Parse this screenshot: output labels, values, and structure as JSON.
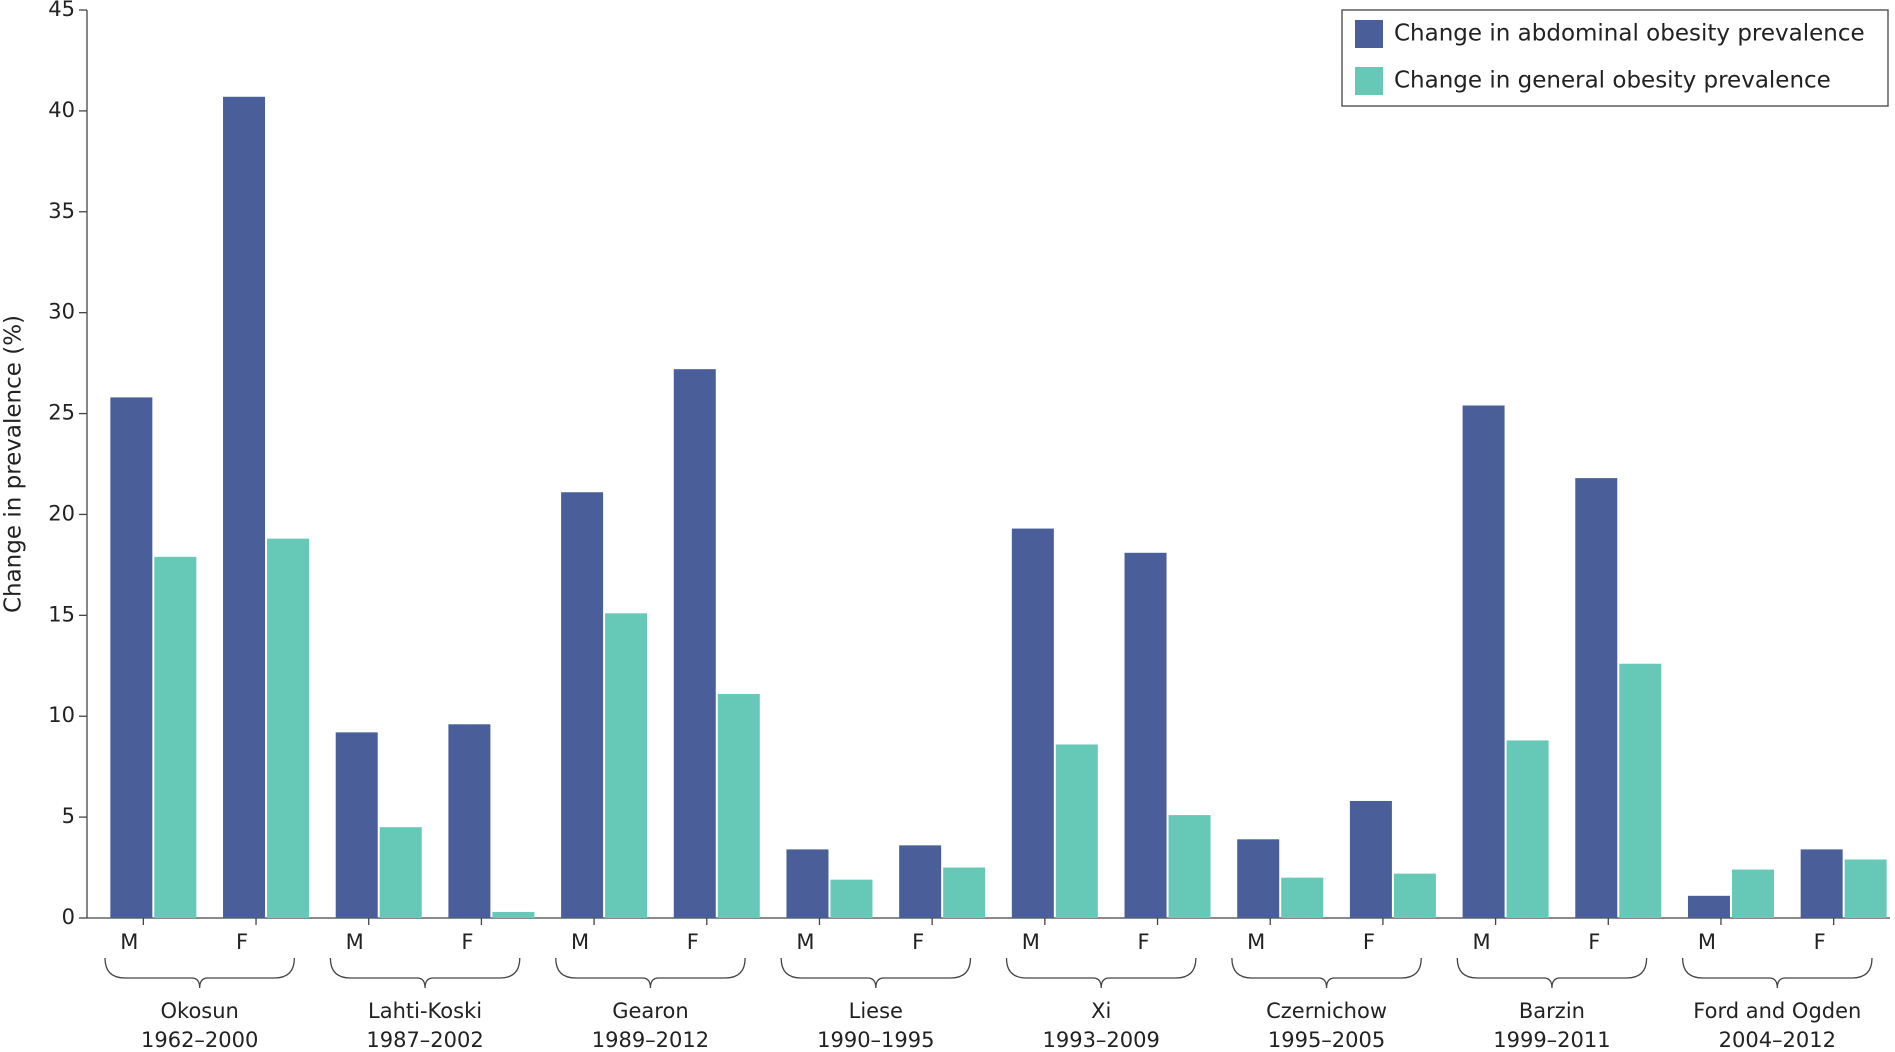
{
  "chart_data": {
    "type": "bar",
    "y_label": "Change in prevalence (%)",
    "categories": [
      "M",
      "F",
      "M",
      "F",
      "M",
      "F",
      "M",
      "F",
      "M",
      "F",
      "M",
      "F",
      "M",
      "F",
      "M",
      "F"
    ],
    "groups": [
      {
        "name": "Okosun",
        "period": "1962–2000"
      },
      {
        "name": "Lahti-Koski",
        "period": "1987–2002"
      },
      {
        "name": "Gearon",
        "period": "1989–2012"
      },
      {
        "name": "Liese",
        "period": "1990–1995"
      },
      {
        "name": "Xi",
        "period": "1993–2009"
      },
      {
        "name": "Czernichow",
        "period": "1995–2005"
      },
      {
        "name": "Barzin",
        "period": "1999–2011"
      },
      {
        "name": "Ford and Ogden",
        "period": "2004–2012"
      }
    ],
    "series": [
      {
        "name": "Change in abdominal obesity prevalence",
        "color": "#4a5f9a",
        "values": [
          25.8,
          40.7,
          9.2,
          9.6,
          21.1,
          27.2,
          3.4,
          3.6,
          19.3,
          18.1,
          3.9,
          5.8,
          25.4,
          21.8,
          1.1,
          3.4
        ]
      },
      {
        "name": "Change in general obesity prevalence",
        "color": "#66c9b8",
        "values": [
          17.9,
          18.8,
          4.5,
          0.3,
          15.1,
          11.1,
          1.9,
          2.5,
          8.6,
          5.1,
          2.0,
          2.2,
          8.8,
          12.6,
          2.4,
          2.9
        ]
      }
    ],
    "ylim": [
      0,
      45
    ],
    "yticks": [
      0,
      5,
      10,
      15,
      20,
      25,
      30,
      35,
      40,
      45
    ],
    "legend": "top-right"
  }
}
